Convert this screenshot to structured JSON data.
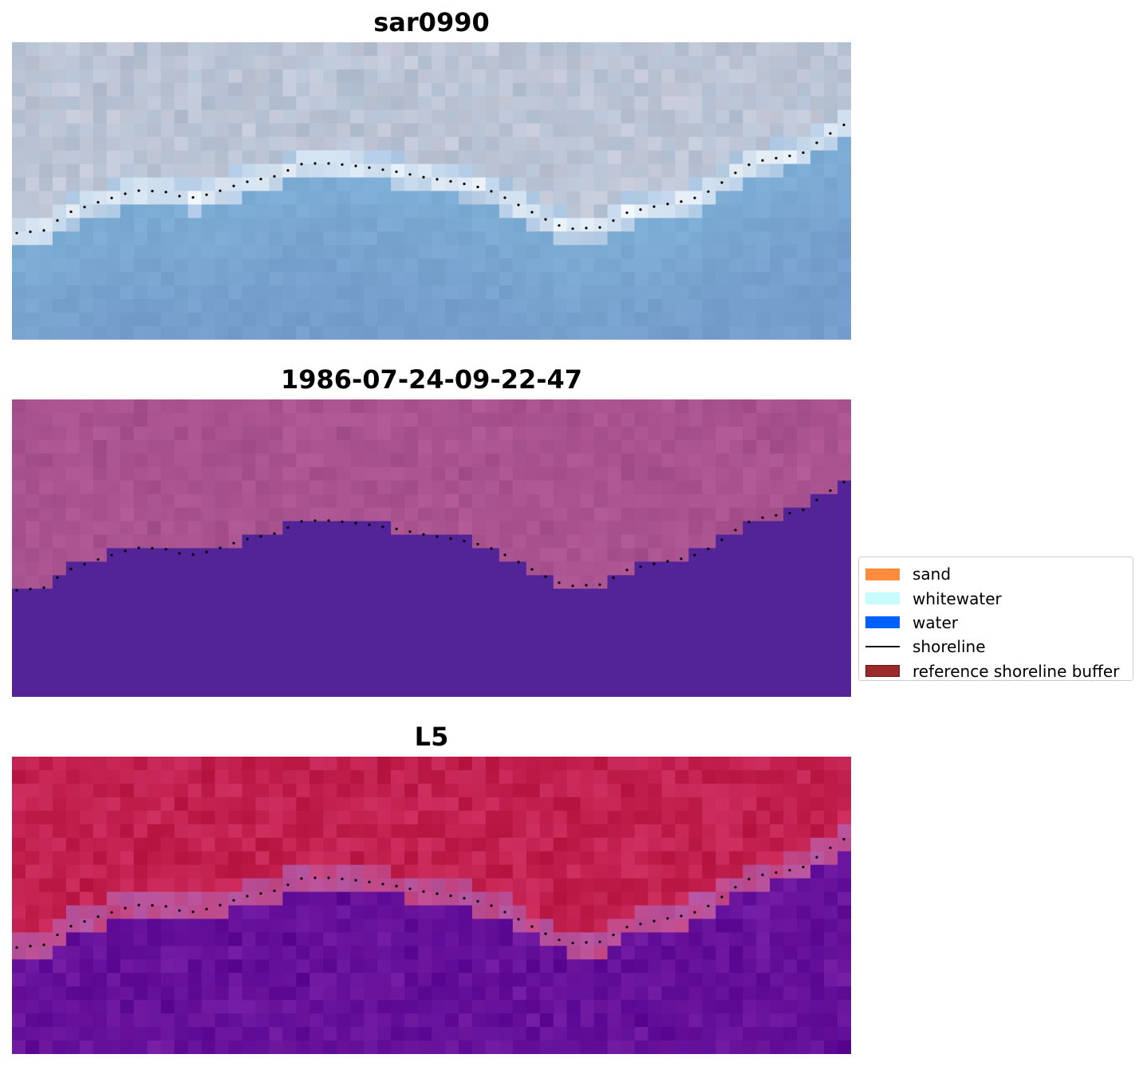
{
  "panels": [
    {
      "title": "sar0990",
      "style": "rgb"
    },
    {
      "title": "1986-07-24-09-22-47",
      "style": "classified"
    },
    {
      "title": "L5",
      "style": "index"
    }
  ],
  "legend": {
    "items": [
      {
        "label": "sand",
        "kind": "patch",
        "color": "#ff8c3c"
      },
      {
        "label": "whitewater",
        "kind": "patch",
        "color": "#c8fcfc"
      },
      {
        "label": "water",
        "kind": "patch",
        "color": "#0060ff"
      },
      {
        "label": "shoreline",
        "kind": "line",
        "color": "#000000"
      },
      {
        "label": "reference shoreline buffer",
        "kind": "patch",
        "color": "#9b2a2a"
      }
    ]
  }
}
